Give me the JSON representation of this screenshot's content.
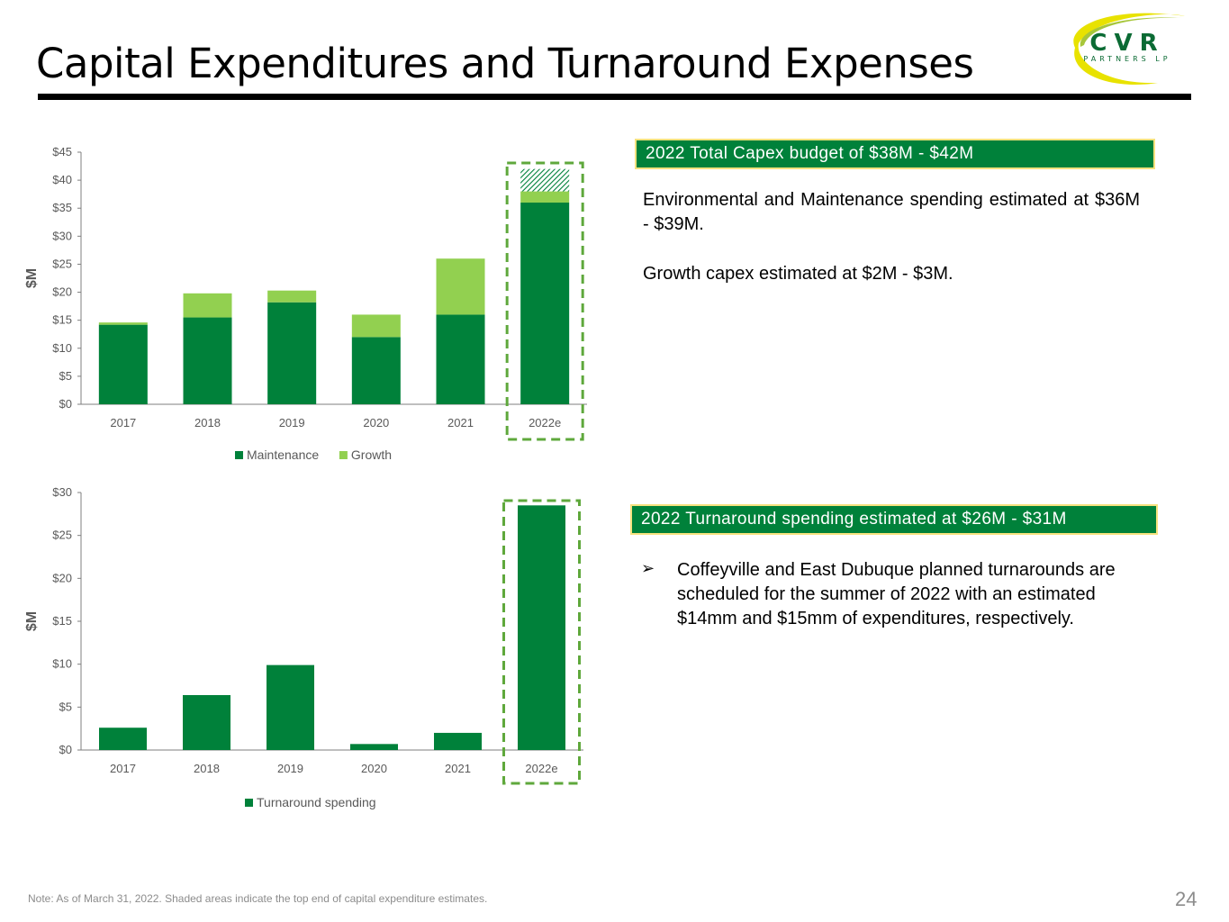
{
  "page": {
    "title": "Capital Expenditures and Turnaround Expenses",
    "page_number": "24",
    "footnote": "Note:  As of March 31, 2022. Shaded areas indicate the top end of capital expenditure estimates."
  },
  "logo": {
    "wordmark": "CVR",
    "subtext": "PARTNERS LP"
  },
  "colors": {
    "maintenance": "#00813a",
    "growth": "#92d050",
    "turnaround": "#00813a",
    "highlight_dash": "#5fa83c",
    "callout_bg": "#00813a",
    "callout_border": "#f6e27f"
  },
  "callouts": {
    "capex": "2022 Total Capex budget of $38M - $42M",
    "turnaround": "2022 Turnaround spending estimated at $26M - $31M"
  },
  "text": {
    "capex_p1": "Environmental and Maintenance spending estimated at $36M - $39M.",
    "capex_p2": "Growth capex estimated at $2M - $3M.",
    "turnaround_bullet": "Coffeyville and East Dubuque planned turnarounds are scheduled for the summer of 2022 with an estimated $14mm and $15mm of expenditures, respectively."
  },
  "chart_data": [
    {
      "type": "bar",
      "stacked": true,
      "ylabel": "$M",
      "ylim": [
        0,
        45
      ],
      "yticks": [
        "$0",
        "$5",
        "$10",
        "$15",
        "$20",
        "$25",
        "$30",
        "$35",
        "$40",
        "$45"
      ],
      "categories": [
        "2017",
        "2018",
        "2019",
        "2020",
        "2021",
        "2022e"
      ],
      "series": [
        {
          "name": "Maintenance",
          "values": [
            14.2,
            15.5,
            18.2,
            12.0,
            16.0,
            36.0
          ]
        },
        {
          "name": "Growth",
          "values": [
            0.4,
            4.3,
            2.1,
            4.0,
            10.0,
            2.0
          ]
        }
      ],
      "estimate_top_shaded": {
        "category": "2022e",
        "from": 38,
        "to": 42
      },
      "highlight": "2022e",
      "legend": "bottom"
    },
    {
      "type": "bar",
      "ylabel": "$M",
      "ylim": [
        0,
        30
      ],
      "yticks": [
        "$0",
        "$5",
        "$10",
        "$15",
        "$20",
        "$25",
        "$30"
      ],
      "categories": [
        "2017",
        "2018",
        "2019",
        "2020",
        "2021",
        "2022e"
      ],
      "series": [
        {
          "name": "Turnaround spending",
          "values": [
            2.6,
            6.4,
            9.9,
            0.7,
            2.0,
            28.5
          ]
        }
      ],
      "highlight": "2022e",
      "legend": "bottom"
    }
  ]
}
